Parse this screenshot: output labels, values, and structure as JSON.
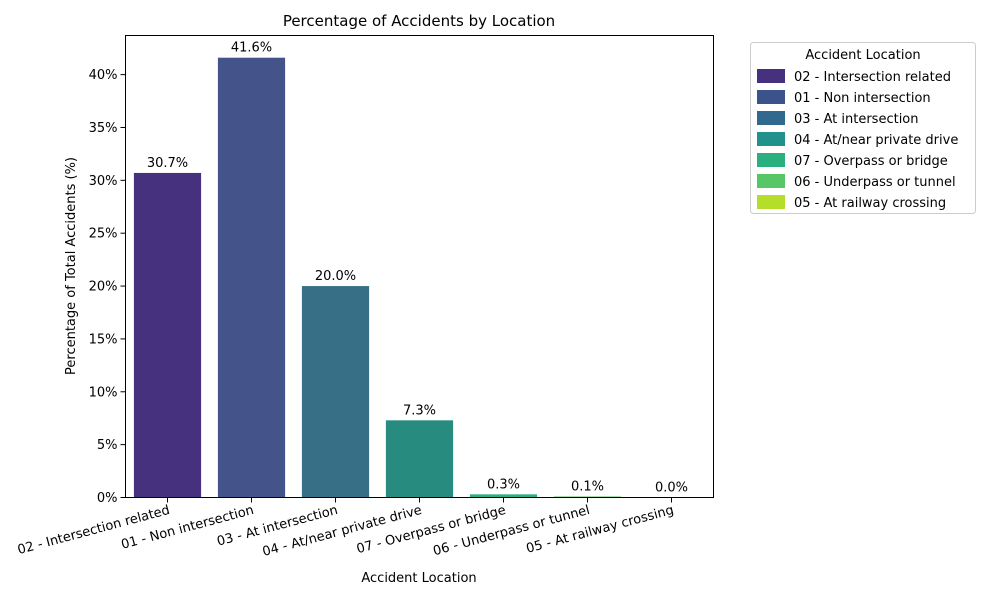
{
  "chart_data": {
    "type": "bar",
    "title": "Percentage of Accidents by Location",
    "xlabel": "Accident Location",
    "ylabel": "Percentage of Total Accidents (%)",
    "ylim": [
      0,
      43.7
    ],
    "yticks": [
      0,
      5,
      10,
      15,
      20,
      25,
      30,
      35,
      40
    ],
    "ytick_labels": [
      "0%",
      "5%",
      "10%",
      "15%",
      "20%",
      "25%",
      "30%",
      "35%",
      "40%"
    ],
    "categories": [
      "02 - Intersection related",
      "01 - Non intersection",
      "03 - At intersection",
      "04 - At/near private drive",
      "07 - Overpass or bridge",
      "06 - Underpass or tunnel",
      "05 - At railway crossing"
    ],
    "values": [
      30.7,
      41.6,
      20.0,
      7.3,
      0.3,
      0.1,
      0.0
    ],
    "data_labels": [
      "30.7%",
      "41.6%",
      "20.0%",
      "7.3%",
      "0.3%",
      "0.1%",
      "0.0%"
    ],
    "colors": [
      "#46317e",
      "#44548a",
      "#366f86",
      "#278b80",
      "#2daf7f",
      "#5dc762",
      "#b5de2b"
    ],
    "legend_colors": [
      "#46317e",
      "#3b528b",
      "#31688e",
      "#21918c",
      "#2ab07f",
      "#56c667",
      "#b5de2b"
    ],
    "legend": {
      "title": "Accident Location",
      "position": "outside-right-top",
      "entries": [
        "02 - Intersection related",
        "01 - Non intersection",
        "03 - At intersection",
        "04 - At/near private drive",
        "07 - Overpass or bridge",
        "06 - Underpass or tunnel",
        "05 - At railway crossing"
      ]
    },
    "grid": false
  }
}
